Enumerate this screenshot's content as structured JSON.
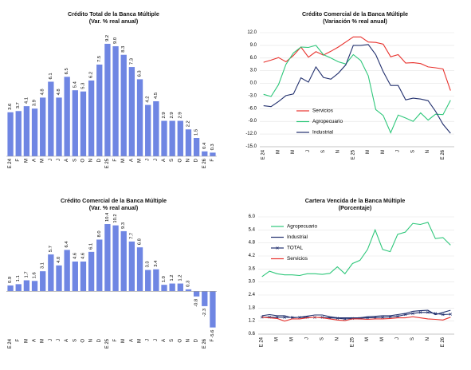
{
  "chart_data": [
    {
      "id": "c1",
      "type": "bar",
      "title": "Crédito Total de la Banca Múltiple",
      "subtitle": "(Var. % real anual)",
      "categories": [
        "E 24",
        "F",
        "M",
        "A",
        "M",
        "J",
        "J",
        "A",
        "S",
        "O",
        "N",
        "D",
        "E 25",
        "F",
        "M",
        "A",
        "M",
        "J",
        "J",
        "A",
        "S",
        "O",
        "N",
        "D",
        "E 26",
        "F"
      ],
      "tick_labels": [
        "E 24",
        "F",
        "M",
        "A",
        "M",
        "J",
        "J",
        "A",
        "S",
        "O",
        "N",
        "D",
        "E 25",
        "F",
        "M",
        "A",
        "M",
        "J",
        "J",
        "A",
        "S",
        "O",
        "N",
        "D",
        "E 26",
        "F"
      ],
      "values": [
        3.6,
        3.7,
        4.1,
        3.9,
        4.8,
        6.1,
        4.8,
        6.5,
        5.4,
        5.3,
        6.2,
        7.5,
        9.2,
        9.0,
        8.3,
        7.3,
        6.3,
        4.2,
        4.5,
        2.9,
        2.9,
        2.9,
        2.2,
        1.5,
        0.4,
        0.3
      ],
      "value_labels": [
        "3.6",
        "3.7",
        "4.1",
        "3.9",
        "4.8",
        "6.1",
        "4.8",
        "6.5",
        "5.4",
        "5.3",
        "6.2",
        "7.5",
        "9.2",
        "9.0",
        "8.3",
        "7.3",
        "6.3",
        "4.2",
        "4.5",
        "2.9",
        "2.9",
        "2.9",
        "2.2",
        "1.5",
        "0.4",
        "0.3"
      ],
      "ylim": [
        0,
        10.5
      ],
      "bar_color": "#6f86e3"
    },
    {
      "id": "c2",
      "type": "line",
      "title": "Crédito Comercial de la Banca Múltiple",
      "subtitle": "(Variación % real anual)",
      "x": [
        "E 24",
        "F",
        "M",
        "A",
        "M",
        "J",
        "J",
        "A",
        "S",
        "O",
        "N",
        "D",
        "E 25",
        "F",
        "M",
        "A",
        "M",
        "J",
        "J",
        "A",
        "S",
        "O",
        "N",
        "D",
        "E 26",
        "F"
      ],
      "tick_labels": [
        "E 24",
        "",
        "M",
        "",
        "M",
        "",
        "J",
        "",
        "S",
        "",
        "N",
        "",
        "E 25",
        "",
        "M",
        "",
        "M",
        "",
        "J",
        "",
        "S",
        "",
        "N",
        "",
        "E 26",
        ""
      ],
      "ylim": [
        -15,
        12
      ],
      "yticks": [
        12,
        9,
        6,
        3,
        0,
        -3,
        -6,
        -9,
        -12,
        -15
      ],
      "ytick_labels": [
        "12.0",
        "9.0",
        "6.0",
        "3.0",
        "0.0",
        "-3.0",
        "-6.0",
        "-9.0",
        "-12.0",
        "-15.0"
      ],
      "grid": true,
      "legend_position": "lower-left",
      "series": [
        {
          "name": "Servicios",
          "color": "#e8322d",
          "values": [
            5.0,
            5.5,
            6.1,
            5.1,
            6.6,
            8.6,
            6.2,
            7.5,
            6.7,
            7.6,
            8.6,
            9.8,
            11.0,
            11.0,
            9.8,
            9.7,
            9.3,
            6.3,
            6.8,
            4.8,
            4.9,
            4.7,
            3.9,
            3.7,
            3.4,
            -1.7
          ]
        },
        {
          "name": "Agropecuario",
          "color": "#2ec77a",
          "values": [
            -2.6,
            -3.1,
            -0.3,
            4.5,
            7.2,
            8.6,
            8.5,
            9.0,
            6.8,
            6.0,
            5.1,
            4.6,
            6.8,
            5.4,
            1.8,
            -6.2,
            -7.6,
            -11.7,
            -7.5,
            -8.2,
            -9.0,
            -7.0,
            -8.7,
            -7.3,
            -7.4,
            -4.0
          ]
        },
        {
          "name": "Industrial",
          "color": "#22306e",
          "values": [
            -5.3,
            -5.5,
            -4.3,
            -2.9,
            -2.5,
            1.3,
            0.3,
            3.9,
            1.4,
            1.0,
            2.4,
            4.4,
            9.0,
            9.0,
            9.2,
            6.8,
            2.8,
            -0.5,
            -0.5,
            -3.9,
            -3.5,
            -3.7,
            -4.1,
            -6.6,
            -9.7,
            -11.8
          ]
        }
      ]
    },
    {
      "id": "c3",
      "type": "bar",
      "title": "Crédito Comercial de la Banca Múltiple",
      "subtitle": "(Var. % real anual)",
      "categories": [
        "E 24",
        "F",
        "M",
        "A",
        "M",
        "J",
        "J",
        "A",
        "S",
        "O",
        "N",
        "D",
        "E 25",
        "F",
        "M",
        "A",
        "M",
        "J",
        "J",
        "A",
        "S",
        "O",
        "N",
        "D",
        "E 26",
        "F"
      ],
      "tick_labels": [
        "E 24",
        "F",
        "M",
        "A",
        "M",
        "J",
        "J",
        "A",
        "S",
        "O",
        "N",
        "D",
        "E 25",
        "F",
        "M",
        "A",
        "M",
        "J",
        "J",
        "A",
        "S",
        "O",
        "N",
        "D",
        "E 26",
        "F"
      ],
      "values": [
        0.9,
        1.1,
        1.7,
        1.6,
        3.1,
        5.7,
        4.0,
        6.4,
        4.6,
        4.6,
        6.1,
        8.0,
        10.4,
        10.2,
        9.3,
        7.7,
        6.8,
        3.3,
        3.4,
        1.0,
        1.2,
        1.2,
        0.3,
        -0.8,
        -2.3,
        -5.6
      ],
      "value_labels": [
        "0.9",
        "1.1",
        "1.7",
        "1.6",
        "3.1",
        "5.7",
        "4.0",
        "6.4",
        "4.6",
        "4.6",
        "6.1",
        "8.0",
        "10.4",
        "10.2",
        "9.3",
        "7.7",
        "6.8",
        "3.3",
        "3.4",
        "1.0",
        "1.2",
        "1.2",
        "0.3",
        "-0.8",
        "-2.3",
        "-5.6"
      ],
      "ylim": [
        -7,
        12.5
      ],
      "bar_color": "#6f86e3"
    },
    {
      "id": "c4",
      "type": "line",
      "title": "Cartera Vencida de la Banca Múltiple",
      "subtitle": "(Porcentaje)",
      "x": [
        "E 24",
        "F",
        "M",
        "A",
        "M",
        "J",
        "J",
        "A",
        "S",
        "O",
        "N",
        "D",
        "E 25",
        "F",
        "M",
        "A",
        "M",
        "J",
        "J",
        "A",
        "S",
        "O",
        "N",
        "D",
        "E 26",
        "F"
      ],
      "tick_labels": [
        "E 24",
        "",
        "M",
        "",
        "M",
        "",
        "J",
        "",
        "S",
        "",
        "N",
        "",
        "E 25",
        "",
        "M",
        "",
        "M",
        "",
        "J",
        "",
        "S",
        "",
        "N",
        "",
        "E 26",
        ""
      ],
      "ylim": [
        0.6,
        6.0
      ],
      "yticks": [
        6.0,
        5.4,
        4.8,
        4.2,
        3.6,
        3.0,
        2.4,
        1.8,
        1.2,
        0.6
      ],
      "ytick_labels": [
        "6.0",
        "5.4",
        "4.8",
        "4.2",
        "3.6",
        "3.0",
        "2.4",
        "1.8",
        "1.2",
        "0.6"
      ],
      "grid": true,
      "legend_position": "top-left",
      "series": [
        {
          "name": "Agropecuario",
          "color": "#2ec77a",
          "marker": "none",
          "values": [
            3.25,
            3.5,
            3.38,
            3.33,
            3.33,
            3.3,
            3.38,
            3.38,
            3.35,
            3.4,
            3.7,
            3.38,
            3.85,
            4.0,
            4.5,
            5.4,
            4.5,
            4.4,
            5.2,
            5.3,
            5.7,
            5.65,
            5.75,
            5.0,
            5.05,
            4.7
          ]
        },
        {
          "name": "Industrial",
          "color": "#22306e",
          "marker": "none",
          "values": [
            1.45,
            1.5,
            1.45,
            1.45,
            1.35,
            1.38,
            1.43,
            1.48,
            1.48,
            1.4,
            1.35,
            1.35,
            1.35,
            1.35,
            1.4,
            1.42,
            1.45,
            1.45,
            1.5,
            1.55,
            1.65,
            1.68,
            1.7,
            1.5,
            1.6,
            1.7
          ]
        },
        {
          "name": "TOTAL",
          "color": "#22306e",
          "marker": "x",
          "values": [
            1.38,
            1.38,
            1.37,
            1.37,
            1.37,
            1.37,
            1.37,
            1.37,
            1.37,
            1.35,
            1.33,
            1.3,
            1.32,
            1.33,
            1.35,
            1.36,
            1.37,
            1.39,
            1.42,
            1.5,
            1.55,
            1.6,
            1.6,
            1.55,
            1.5,
            1.52
          ]
        },
        {
          "name": "Servicios",
          "color": "#e8322d",
          "marker": "none",
          "values": [
            1.38,
            1.35,
            1.32,
            1.2,
            1.3,
            1.3,
            1.35,
            1.38,
            1.35,
            1.3,
            1.25,
            1.22,
            1.3,
            1.3,
            1.28,
            1.3,
            1.3,
            1.32,
            1.35,
            1.35,
            1.4,
            1.35,
            1.3,
            1.28,
            1.25,
            1.38
          ]
        }
      ]
    }
  ]
}
